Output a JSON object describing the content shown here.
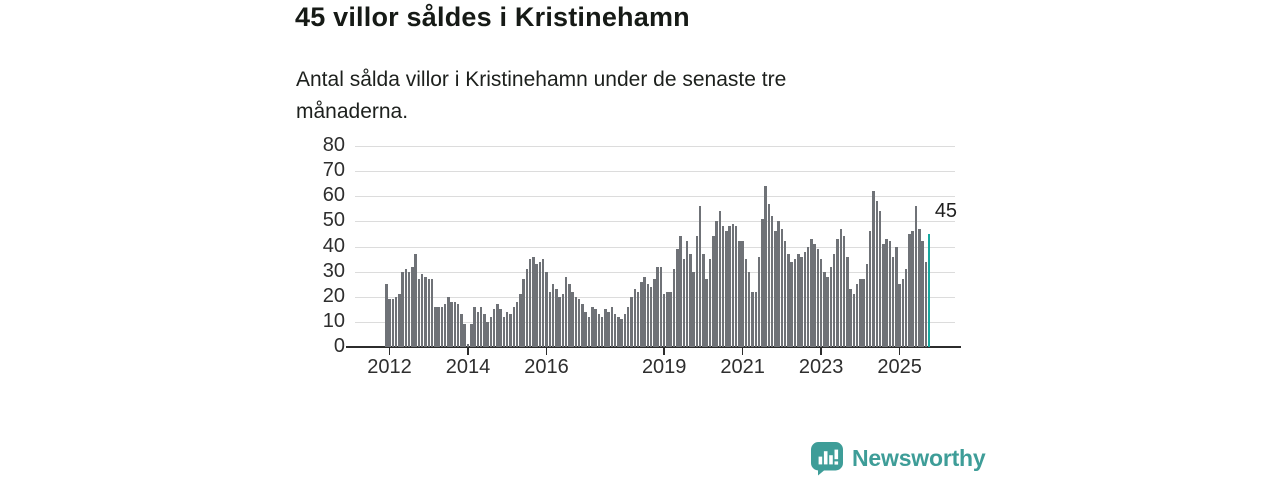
{
  "header": {
    "title": "45 villor såldes i Kristinehamn",
    "subtitle": "Antal sålda villor i Kristinehamn under de senaste tre månaderna.",
    "subtitle_line1": "Antal sålda villor i Kristinehamn under de senaste tre",
    "subtitle_line2": "månaderna."
  },
  "chart_data": {
    "type": "bar",
    "title": "45 villor såldes i Kristinehamn",
    "x_start": "2011-12",
    "x_interval": "month",
    "x_tick_years": [
      2012,
      2014,
      2016,
      2019,
      2021,
      2023,
      2025
    ],
    "y_ticks": [
      0,
      10,
      20,
      30,
      40,
      50,
      60,
      70,
      80
    ],
    "ylim": [
      0,
      80
    ],
    "grid": "horizontal",
    "legend": "none",
    "bar_color": "#6F7277",
    "values": [
      25,
      19,
      19,
      20,
      21,
      30,
      31,
      30,
      32,
      37,
      27,
      29,
      28,
      27,
      27,
      16,
      16,
      16,
      17,
      20,
      18,
      18,
      17,
      13,
      9,
      1,
      9,
      16,
      14,
      16,
      13,
      10,
      12,
      15,
      17,
      15,
      12,
      14,
      13,
      16,
      18,
      21,
      27,
      31,
      35,
      36,
      33,
      34,
      35,
      30,
      22,
      25,
      23,
      20,
      21,
      28,
      25,
      22,
      20,
      19,
      17,
      14,
      12,
      16,
      15,
      13,
      12,
      15,
      14,
      16,
      13,
      12,
      11,
      13,
      16,
      20,
      23,
      22,
      26,
      28,
      25,
      24,
      27,
      32,
      32,
      21,
      22,
      22,
      31,
      39,
      44,
      35,
      42,
      37,
      30,
      44,
      56,
      37,
      27,
      35,
      44,
      50,
      54,
      48,
      46,
      48,
      49,
      48,
      42,
      42,
      35,
      30,
      22,
      22,
      36,
      51,
      64,
      57,
      52,
      46,
      50,
      47,
      42,
      37,
      34,
      35,
      37,
      36,
      38,
      40,
      43,
      41,
      39,
      35,
      30,
      28,
      32,
      37,
      43,
      47,
      44,
      36,
      23,
      21,
      25,
      27,
      27,
      33,
      46,
      62,
      58,
      54,
      41,
      43,
      42,
      36,
      40,
      25,
      27,
      31,
      45,
      46,
      56,
      47,
      42,
      34,
      45
    ],
    "highlight_last": {
      "label": "45",
      "value": 45,
      "color": "#17A79E"
    }
  },
  "footer": {
    "brand": "Newsworthy",
    "brand_color": "#3E9D98"
  }
}
